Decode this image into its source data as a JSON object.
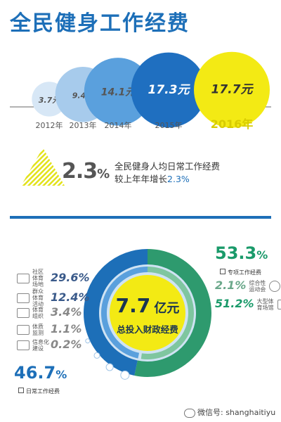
{
  "title": "全民健身工作经费",
  "chart_data": [
    {
      "type": "bubble",
      "title": "",
      "categories": [
        "2012年",
        "2013年",
        "2014年",
        "2015年",
        "2016年"
      ],
      "values": [
        3.7,
        9.4,
        14.1,
        17.3,
        17.7
      ],
      "value_labels": [
        "3.7元",
        "9.4元",
        "14.1元",
        "17.3元",
        "17.7元"
      ],
      "highlight": "2016年",
      "colors": [
        "#d7e7f6",
        "#a7cbec",
        "#5aa0dd",
        "#1f6fc0",
        "#f3ea14"
      ]
    },
    {
      "type": "pie",
      "title": "",
      "center_value": "7.7",
      "center_unit": "亿元",
      "center_caption": "总投入财政经费",
      "groups": [
        {
          "name": "日常工作经费",
          "value": 46.7,
          "label": "46.7%",
          "color": "#1d6fb8",
          "items": [
            {
              "name": "社区体育场地",
              "label_lines": [
                "社区",
                "体育",
                "场地"
              ],
              "value": 29.6,
              "label": "29.6%",
              "icon": "court-icon"
            },
            {
              "name": "群众体育活动",
              "label_lines": [
                "群众",
                "体育",
                "活动"
              ],
              "value": 12.4,
              "label": "12.4%",
              "icon": "runner-icon"
            },
            {
              "name": "体育组织",
              "label_lines": [
                "体育",
                "组织"
              ],
              "value": 3.4,
              "label": "3.4%",
              "icon": "group-icon"
            },
            {
              "name": "体质监测",
              "label_lines": [
                "体质",
                "监测"
              ],
              "value": 1.1,
              "label": "1.1%",
              "icon": "monitor-icon"
            },
            {
              "name": "信息化建设",
              "label_lines": [
                "信息化",
                "建设"
              ],
              "value": 0.2,
              "label": "0.2%",
              "icon": "globe-icon"
            }
          ]
        },
        {
          "name": "专项工作经费",
          "value": 53.3,
          "label": "53.3%",
          "color": "#1a9a6a",
          "items": [
            {
              "name": "综合性运动会",
              "label_lines": [
                "综合性",
                "运动会"
              ],
              "value": 2.1,
              "label": "2.1%",
              "icon": "medal-icon"
            },
            {
              "name": "大型体育场馆",
              "label_lines": [
                "大型体",
                "育场馆"
              ],
              "value": 51.2,
              "label": "51.2%",
              "icon": "stadium-icon"
            }
          ]
        }
      ]
    }
  ],
  "growth": {
    "value": "2.3",
    "unit": "%",
    "line1": "全民健身人均日常工作经费",
    "line2_prefix": "较上年年增长",
    "line2_value": "2.3%"
  },
  "watermark": {
    "prefix": "微信号: ",
    "handle": "shanghaitiyu"
  }
}
